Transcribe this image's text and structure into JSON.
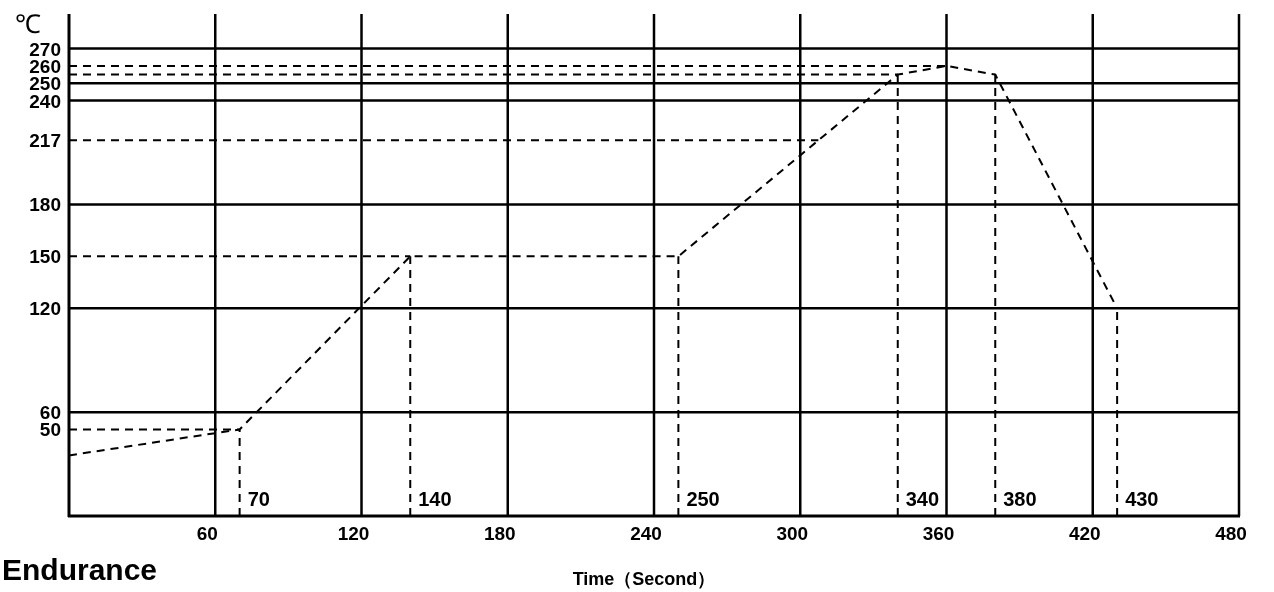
{
  "chart_data": {
    "type": "line",
    "xlabel": "Time（Second）",
    "ylabel": "℃",
    "annotations": [
      "Endurance"
    ],
    "x": [
      0,
      70,
      140,
      250,
      340,
      360,
      380,
      430
    ],
    "series": [
      {
        "color": "#000000",
        "values": [
          35,
          50,
          150,
          150,
          255,
          260,
          255,
          120
        ],
        "line_style": "dashed"
      }
    ],
    "xlim": [
      0,
      480
    ],
    "xticks": [
      60,
      120,
      180,
      240,
      300,
      360,
      420,
      480
    ],
    "ylim": [
      0,
      290
    ],
    "yticks": [
      50,
      60,
      120,
      150,
      180,
      217,
      240,
      250,
      260,
      270
    ],
    "grid": "x",
    "marker": "none",
    "ref_lines": [
      {
        "axis": "y",
        "value": 60,
        "color": "#000000",
        "line_style": "solid"
      },
      {
        "axis": "y",
        "value": 120,
        "color": "#000000",
        "line_style": "solid"
      },
      {
        "axis": "y",
        "value": 180,
        "color": "#000000",
        "line_style": "solid"
      },
      {
        "axis": "y",
        "value": 240,
        "color": "#000000",
        "line_style": "solid"
      },
      {
        "axis": "y",
        "value": 250,
        "color": "#000000",
        "line_style": "solid"
      },
      {
        "axis": "y",
        "value": 270,
        "color": "#000000",
        "line_style": "solid"
      },
      {
        "axis": "y",
        "value": 50,
        "color": "#000000",
        "line_style": "dashed"
      },
      {
        "axis": "y",
        "value": 150,
        "color": "#000000",
        "line_style": "dashed"
      },
      {
        "axis": "y",
        "value": 217,
        "color": "#000000",
        "line_style": "dashed"
      },
      {
        "axis": "y",
        "value": 255,
        "color": "#000000",
        "line_style": "dashed"
      },
      {
        "axis": "y",
        "value": 260,
        "color": "#000000",
        "line_style": "dashed"
      },
      {
        "axis": "x",
        "value": 70,
        "label": "70",
        "color": "#000000",
        "line_style": "dashed"
      },
      {
        "axis": "x",
        "value": 140,
        "label": "140",
        "color": "#000000",
        "line_style": "dashed"
      },
      {
        "axis": "x",
        "value": 250,
        "label": "250",
        "color": "#000000",
        "line_style": "dashed"
      },
      {
        "axis": "x",
        "value": 340,
        "label": "340",
        "color": "#000000",
        "line_style": "dashed"
      },
      {
        "axis": "x",
        "value": 380,
        "label": "380",
        "color": "#000000",
        "line_style": "dashed"
      },
      {
        "axis": "x",
        "value": 430,
        "label": "430",
        "color": "#000000",
        "line_style": "dashed"
      }
    ]
  }
}
